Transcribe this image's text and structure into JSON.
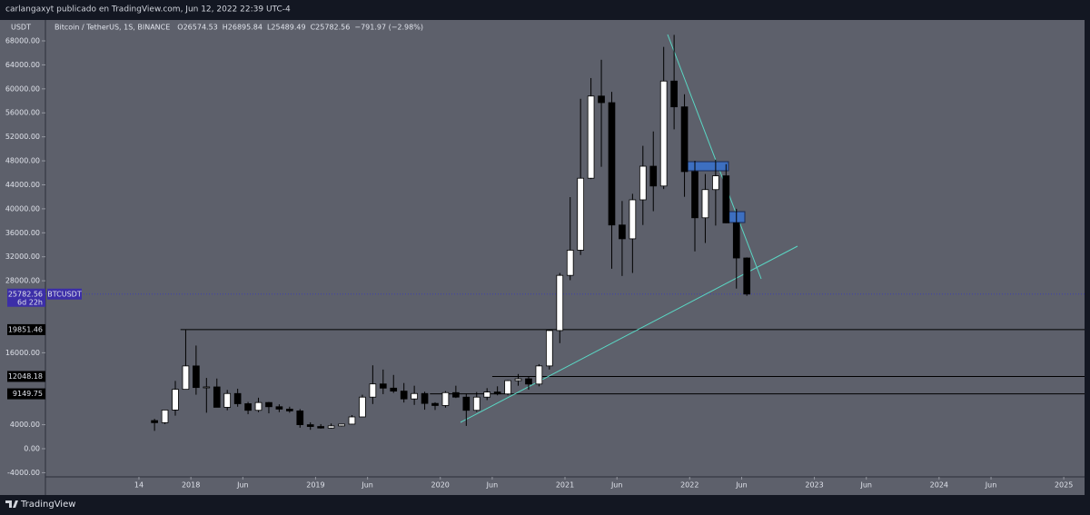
{
  "header": {
    "title": "carlangaxyt publicado en TradingView.com, Jun 12, 2022 22:39 UTC-4"
  },
  "footer": {
    "brand": "TradingView"
  },
  "chart_data": {
    "type": "candlestick",
    "symbol": "Bitcoin / TetherUS, 1S, BINANCE",
    "ohlc_text": [
      "O26574.53",
      "H26895.84",
      "L25489.49",
      "C25782.56",
      "−791.97 (−2.98%)"
    ],
    "currency": "USDT",
    "x": [
      "2017-09",
      "2017-10",
      "2017-11",
      "2017-12",
      "2018-01",
      "2018-02",
      "2018-03",
      "2018-04",
      "2018-05",
      "2018-06",
      "2018-07",
      "2018-08",
      "2018-09",
      "2018-10",
      "2018-11",
      "2018-12",
      "2019-01",
      "2019-02",
      "2019-03",
      "2019-04",
      "2019-05",
      "2019-06",
      "2019-07",
      "2019-08",
      "2019-09",
      "2019-10",
      "2019-11",
      "2019-12",
      "2020-01",
      "2020-02",
      "2020-03",
      "2020-04",
      "2020-05",
      "2020-06",
      "2020-07",
      "2020-08",
      "2020-09",
      "2020-10",
      "2020-11",
      "2020-12",
      "2021-01",
      "2021-02",
      "2021-03",
      "2021-04",
      "2021-05",
      "2021-06",
      "2021-07",
      "2021-08",
      "2021-09",
      "2021-10",
      "2021-11",
      "2021-12",
      "2022-01",
      "2022-02",
      "2022-03",
      "2022-04",
      "2022-05",
      "2022-06"
    ],
    "open": [
      4690,
      4338,
      6450,
      9900,
      13800,
      10200,
      10300,
      6900,
      9200,
      7500,
      6400,
      7700,
      7000,
      6600,
      6300,
      4000,
      3700,
      3450,
      3800,
      4100,
      5300,
      8600,
      10800,
      10100,
      9600,
      8300,
      9200,
      7550,
      7200,
      9350,
      8600,
      6400,
      8600,
      9450,
      9130,
      11350,
      11650,
      10780,
      13800,
      19700,
      28900,
      33100,
      45100,
      58800,
      57700,
      37300,
      35000,
      41500,
      47100,
      43800,
      61300,
      57000,
      46200,
      38500,
      43200,
      45500,
      37650,
      31800
    ],
    "high": [
      4980,
      6470,
      11300,
      19800,
      17200,
      11800,
      11700,
      9800,
      10000,
      7800,
      8500,
      7800,
      7400,
      7000,
      6600,
      4400,
      4100,
      4200,
      4150,
      5600,
      9000,
      13900,
      13200,
      12300,
      10950,
      10500,
      9500,
      7750,
      9600,
      10500,
      9200,
      9450,
      10100,
      10400,
      11450,
      12450,
      12100,
      14100,
      19900,
      29300,
      41950,
      58350,
      61800,
      64850,
      59500,
      41300,
      42500,
      50500,
      52900,
      67000,
      69000,
      59100,
      48000,
      45800,
      48200,
      47450,
      40000,
      31900
    ],
    "low": [
      2975,
      4110,
      5500,
      10600,
      9000,
      6000,
      6900,
      6400,
      7000,
      5750,
      6100,
      5900,
      6100,
      6000,
      3500,
      3150,
      3350,
      3350,
      3700,
      4050,
      5300,
      7450,
      9100,
      9300,
      7700,
      7300,
      6500,
      6450,
      6850,
      8450,
      3800,
      6150,
      8100,
      8900,
      8900,
      10500,
      9850,
      10400,
      13200,
      17600,
      28100,
      32300,
      44950,
      47000,
      30000,
      28800,
      29300,
      37300,
      39600,
      43300,
      53250,
      42000,
      32900,
      34300,
      37200,
      37600,
      26700,
      25489.49
    ],
    "close": [
      4338,
      6450,
      9900,
      13800,
      10200,
      10300,
      6900,
      9200,
      7500,
      6400,
      7700,
      7000,
      6600,
      6300,
      4000,
      3700,
      3450,
      3800,
      4100,
      5300,
      8600,
      10800,
      10100,
      9600,
      8300,
      9200,
      7550,
      7200,
      9350,
      8600,
      6400,
      8600,
      9450,
      9130,
      11350,
      11650,
      10780,
      13800,
      19700,
      28900,
      33100,
      45100,
      58800,
      57700,
      37300,
      35000,
      41500,
      47100,
      43800,
      61300,
      57000,
      46200,
      38500,
      43200,
      45500,
      37650,
      31800,
      25782.56
    ],
    "up_color": "#ffffff",
    "down_color": "#000000",
    "ylim": [
      -4695,
      71484
    ],
    "yticks": [
      {
        "value": 68000,
        "label": "68000.00"
      },
      {
        "value": 64000,
        "label": "64000.00"
      },
      {
        "value": 60000,
        "label": "60000.00"
      },
      {
        "value": 56000,
        "label": "56000.00"
      },
      {
        "value": 52000,
        "label": "52000.00"
      },
      {
        "value": 48000,
        "label": "48000.00"
      },
      {
        "value": 44000,
        "label": "44000.00"
      },
      {
        "value": 40000,
        "label": "40000.00"
      },
      {
        "value": 36000,
        "label": "36000.00"
      },
      {
        "value": 32000,
        "label": "32000.00"
      },
      {
        "value": 28000,
        "label": "28000.00"
      },
      {
        "value": 16000,
        "label": "16000.00"
      },
      {
        "value": 4000,
        "label": "4000.00"
      },
      {
        "value": 0,
        "label": "0.00"
      },
      {
        "value": -4000,
        "label": "-4000.00"
      }
    ],
    "xlim": [
      "2016-11",
      "2025-03"
    ],
    "xticks": [
      {
        "value": "2017-08",
        "label": "14"
      },
      {
        "value": "2018-01",
        "label": "2018"
      },
      {
        "value": "2018-06",
        "label": "Jun"
      },
      {
        "value": "2019-01",
        "label": "2019"
      },
      {
        "value": "2019-06",
        "label": "Jun"
      },
      {
        "value": "2020-01",
        "label": "2020"
      },
      {
        "value": "2020-06",
        "label": "Jun"
      },
      {
        "value": "2021-01",
        "label": "2021"
      },
      {
        "value": "2021-06",
        "label": "Jun"
      },
      {
        "value": "2022-01",
        "label": "2022"
      },
      {
        "value": "2022-06",
        "label": "Jun"
      },
      {
        "value": "2023-01",
        "label": "2023"
      },
      {
        "value": "2023-06",
        "label": "Jun"
      },
      {
        "value": "2024-01",
        "label": "2024"
      },
      {
        "value": "2024-06",
        "label": "Jun"
      },
      {
        "value": "2025-01",
        "label": "2025"
      }
    ],
    "levels": [
      19851.46,
      12048.18,
      9149.75
    ],
    "level_starts": [
      "2017-12",
      "2020-06",
      "2019-12"
    ],
    "last_price": 25782.56,
    "last_price_countdown": "6d 22h",
    "last_price_tag": "BTCUSDT"
  }
}
